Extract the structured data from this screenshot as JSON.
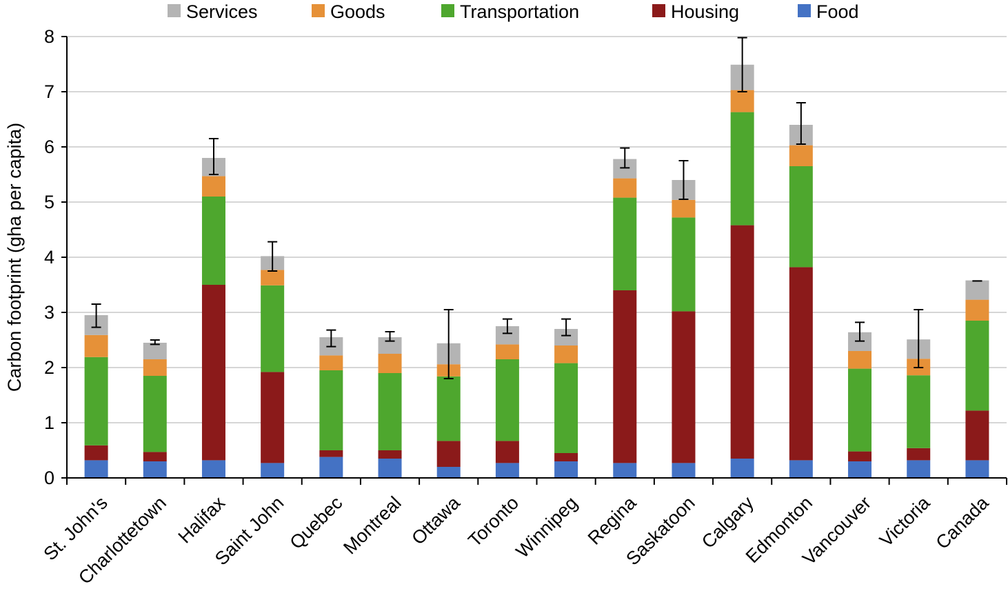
{
  "chart_data": {
    "type": "bar",
    "stacked": true,
    "title": "",
    "xlabel": "",
    "ylabel": "Carbon footprint (gha per capita)",
    "ylim": [
      0,
      8
    ],
    "yticks": [
      0,
      1,
      2,
      3,
      4,
      5,
      6,
      7,
      8
    ],
    "grid": true,
    "legend_position": "top",
    "categories": [
      "St. John's",
      "Charlottetown",
      "Halifax",
      "Saint John",
      "Quebec",
      "Montreal",
      "Ottawa",
      "Toronto",
      "Winnipeg",
      "Regina",
      "Saskatoon",
      "Calgary",
      "Edmonton",
      "Vancouver",
      "Victoria",
      "Canada"
    ],
    "legend_order": [
      "Services",
      "Goods",
      "Transportation",
      "Housing",
      "Food"
    ],
    "series": [
      {
        "name": "Food",
        "color": "#4472C4",
        "values": [
          0.32,
          0.3,
          0.32,
          0.27,
          0.38,
          0.35,
          0.2,
          0.27,
          0.3,
          0.27,
          0.27,
          0.35,
          0.32,
          0.3,
          0.32,
          0.32
        ]
      },
      {
        "name": "Housing",
        "color": "#8B1A1A",
        "values": [
          0.27,
          0.17,
          3.18,
          1.65,
          0.12,
          0.15,
          0.47,
          0.4,
          0.15,
          3.13,
          2.75,
          4.23,
          3.5,
          0.18,
          0.22,
          0.9
        ]
      },
      {
        "name": "Transportation",
        "color": "#4EA72E",
        "values": [
          1.6,
          1.38,
          1.6,
          1.57,
          1.45,
          1.4,
          1.17,
          1.48,
          1.63,
          1.68,
          1.7,
          2.05,
          1.83,
          1.5,
          1.32,
          1.63
        ]
      },
      {
        "name": "Goods",
        "color": "#E69138",
        "values": [
          0.4,
          0.3,
          0.37,
          0.28,
          0.27,
          0.35,
          0.22,
          0.27,
          0.32,
          0.35,
          0.32,
          0.4,
          0.38,
          0.32,
          0.3,
          0.38
        ]
      },
      {
        "name": "Services",
        "color": "#B4B4B4",
        "values": [
          0.36,
          0.3,
          0.33,
          0.25,
          0.33,
          0.3,
          0.38,
          0.33,
          0.3,
          0.35,
          0.36,
          0.46,
          0.37,
          0.34,
          0.35,
          0.35
        ]
      }
    ],
    "error_bars": [
      {
        "low": 2.73,
        "high": 3.15
      },
      {
        "low": 2.42,
        "high": 2.5
      },
      {
        "low": 5.5,
        "high": 6.15
      },
      {
        "low": 3.75,
        "high": 4.28
      },
      {
        "low": 2.38,
        "high": 2.68
      },
      {
        "low": 2.48,
        "high": 2.65
      },
      {
        "low": 1.8,
        "high": 3.05
      },
      {
        "low": 2.62,
        "high": 2.88
      },
      {
        "low": 2.58,
        "high": 2.88
      },
      {
        "low": 5.62,
        "high": 5.98
      },
      {
        "low": 5.05,
        "high": 5.75
      },
      {
        "low": 7.0,
        "high": 7.98
      },
      {
        "low": 6.05,
        "high": 6.8
      },
      {
        "low": 2.48,
        "high": 2.82
      },
      {
        "low": 2.0,
        "high": 3.05
      },
      {
        "low": 3.57,
        "high": 3.57
      }
    ]
  }
}
